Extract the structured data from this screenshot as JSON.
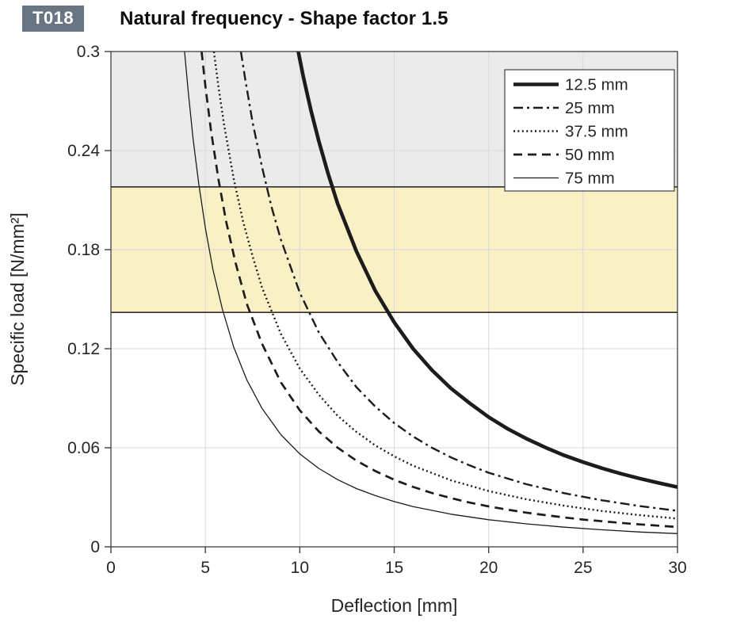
{
  "header": {
    "badge": "T018",
    "title": "Natural frequency - Shape factor 1.5"
  },
  "colors": {
    "badge_bg": "#6a7583",
    "band_gray": "#ebebeb",
    "band_yellow": "#faf0c5",
    "band_edge": "#2f2f2f",
    "curve": "#1c1c1c",
    "grid": "#d9d9d9",
    "axis": "#3f3f3f"
  },
  "chart_data": {
    "type": "line",
    "title": "Natural frequency - Shape factor 1.5",
    "xlabel": "Deflection  [mm]",
    "ylabel": "Specific load [N/mm²]",
    "xlim": [
      0,
      30
    ],
    "ylim": [
      0,
      0.3
    ],
    "xticks": [
      0,
      5,
      10,
      15,
      20,
      25,
      30
    ],
    "xtick_labels": [
      "0",
      "5",
      "10",
      "15",
      "20",
      "25",
      "30"
    ],
    "yticks": [
      0,
      0.06,
      0.12,
      0.18,
      0.24,
      0.3
    ],
    "ytick_labels": [
      "0",
      "0.06",
      "0.12",
      "0.18",
      "0.24",
      "0.3"
    ],
    "grid": true,
    "legend_position": "top-right",
    "bands": [
      {
        "name": "band-gray-upper",
        "from": 0.218,
        "to": 0.3,
        "color_key": "band_gray"
      },
      {
        "name": "band-recommended-load",
        "from": 0.142,
        "to": 0.218,
        "color_key": "band_yellow"
      }
    ],
    "band_edge_lines": [
      0.218,
      0.142
    ],
    "series": [
      {
        "name": "12.5 mm",
        "style": "solid-thick",
        "points": [
          [
            9.92,
            0.3
          ],
          [
            10.2,
            0.284
          ],
          [
            10.6,
            0.264
          ],
          [
            11,
            0.246
          ],
          [
            11.5,
            0.226
          ],
          [
            12,
            0.208
          ],
          [
            13,
            0.179
          ],
          [
            14,
            0.155
          ],
          [
            15,
            0.136
          ],
          [
            16,
            0.12
          ],
          [
            17,
            0.107
          ],
          [
            18,
            0.096
          ],
          [
            19,
            0.087
          ],
          [
            20,
            0.0786
          ],
          [
            21,
            0.0715
          ],
          [
            22,
            0.0655
          ],
          [
            23,
            0.0602
          ],
          [
            24,
            0.0554
          ],
          [
            25,
            0.0513
          ],
          [
            26,
            0.0476
          ],
          [
            27,
            0.0443
          ],
          [
            28,
            0.0414
          ],
          [
            29,
            0.0387
          ],
          [
            30,
            0.0362
          ]
        ]
      },
      {
        "name": "25 mm",
        "style": "dash-dot",
        "points": [
          [
            6.88,
            0.3
          ],
          [
            7.1,
            0.284
          ],
          [
            7.5,
            0.257
          ],
          [
            8,
            0.23
          ],
          [
            8.5,
            0.206
          ],
          [
            9,
            0.186
          ],
          [
            10,
            0.154
          ],
          [
            11,
            0.13
          ],
          [
            12,
            0.112
          ],
          [
            13,
            0.0967
          ],
          [
            14,
            0.0849
          ],
          [
            15,
            0.075
          ],
          [
            16,
            0.0668
          ],
          [
            17,
            0.06
          ],
          [
            18,
            0.0542
          ],
          [
            19,
            0.0493
          ],
          [
            20,
            0.0449
          ],
          [
            22,
            0.0379
          ],
          [
            24,
            0.0325
          ],
          [
            26,
            0.0282
          ],
          [
            28,
            0.0247
          ],
          [
            30,
            0.0218
          ]
        ]
      },
      {
        "name": "37.5 mm",
        "style": "dotted",
        "points": [
          [
            5.45,
            0.3
          ],
          [
            5.7,
            0.278
          ],
          [
            6,
            0.255
          ],
          [
            6.5,
            0.223
          ],
          [
            7,
            0.197
          ],
          [
            7.5,
            0.176
          ],
          [
            8,
            0.157
          ],
          [
            9,
            0.129
          ],
          [
            10,
            0.108
          ],
          [
            11,
            0.0922
          ],
          [
            12,
            0.0794
          ],
          [
            13,
            0.0696
          ],
          [
            14,
            0.0614
          ],
          [
            15,
            0.0548
          ],
          [
            16,
            0.0491
          ],
          [
            18,
            0.0403
          ],
          [
            20,
            0.0338
          ],
          [
            22,
            0.0288
          ],
          [
            24,
            0.0249
          ],
          [
            26,
            0.0217
          ],
          [
            28,
            0.0192
          ],
          [
            30,
            0.0171
          ]
        ]
      },
      {
        "name": "50 mm",
        "style": "dashed",
        "points": [
          [
            4.8,
            0.3
          ],
          [
            5,
            0.279
          ],
          [
            5.3,
            0.252
          ],
          [
            5.7,
            0.222
          ],
          [
            6.1,
            0.197
          ],
          [
            6.6,
            0.172
          ],
          [
            7.2,
            0.147
          ],
          [
            8,
            0.123
          ],
          [
            9,
            0.0996
          ],
          [
            10,
            0.0827
          ],
          [
            11,
            0.07
          ],
          [
            12,
            0.0601
          ],
          [
            13,
            0.0522
          ],
          [
            14,
            0.0459
          ],
          [
            15,
            0.0406
          ],
          [
            16,
            0.0363
          ],
          [
            17,
            0.0326
          ],
          [
            18,
            0.0295
          ],
          [
            19,
            0.0268
          ],
          [
            20,
            0.0245
          ],
          [
            21,
            0.0225
          ],
          [
            22,
            0.0207
          ],
          [
            23,
            0.0192
          ],
          [
            24,
            0.0178
          ],
          [
            25,
            0.0165
          ],
          [
            26,
            0.0155
          ],
          [
            27,
            0.0145
          ],
          [
            28,
            0.0136
          ],
          [
            29,
            0.0128
          ],
          [
            30,
            0.012
          ]
        ]
      },
      {
        "name": "75 mm",
        "style": "solid-thin",
        "points": [
          [
            3.9,
            0.3
          ],
          [
            4.1,
            0.275
          ],
          [
            4.35,
            0.247
          ],
          [
            4.65,
            0.22
          ],
          [
            5,
            0.193
          ],
          [
            5.4,
            0.168
          ],
          [
            5.9,
            0.144
          ],
          [
            6.5,
            0.121
          ],
          [
            7.2,
            0.101
          ],
          [
            8,
            0.0838
          ],
          [
            9,
            0.0679
          ],
          [
            10,
            0.0563
          ],
          [
            11,
            0.0475
          ],
          [
            12,
            0.0407
          ],
          [
            13,
            0.0353
          ],
          [
            14,
            0.031
          ],
          [
            15,
            0.0274
          ],
          [
            16,
            0.0244
          ],
          [
            18,
            0.0198
          ],
          [
            20,
            0.0164
          ],
          [
            22,
            0.0139
          ],
          [
            24,
            0.0119
          ],
          [
            26,
            0.0103
          ],
          [
            28,
            0.009
          ],
          [
            30,
            0.008
          ]
        ]
      }
    ]
  }
}
